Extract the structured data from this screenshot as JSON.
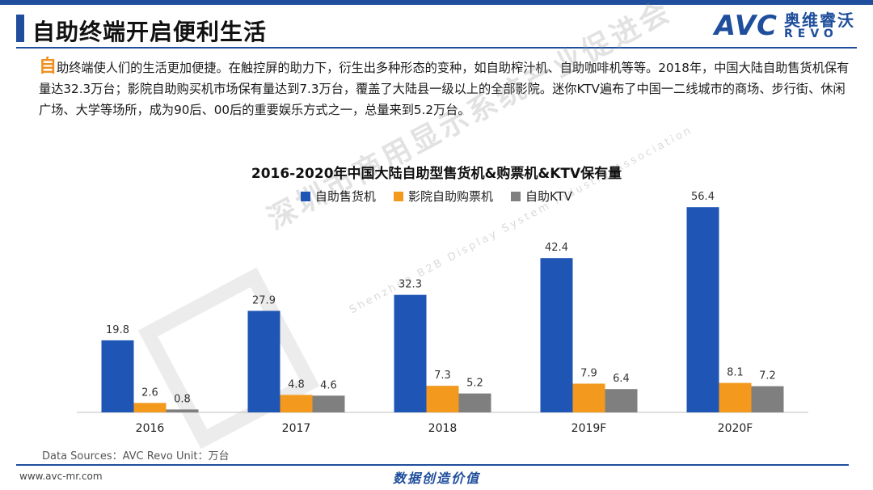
{
  "header": {
    "title": "自助终端开启便利生活",
    "logo_text": "AVC",
    "logo_cn": "奥维睿沃",
    "logo_revo": "REVO"
  },
  "intro": {
    "dropcap": "自",
    "text": "助终端使人们的生活更加便捷。在触控屏的助力下，衍生出多种形态的变种，如自助榨汁机、自助咖啡机等等。2018年，中国大陆自助售货机保有量达32.3万台；影院自助购买机市场保有量达到7.3万台，覆盖了大陆县一级以上的全部影院。迷你KTV遍布了中国一二线城市的商场、步行街、休闲广场、大学等场所，成为90后、00后的重要娱乐方式之一，总量来到5.2万台。"
  },
  "chart_data": {
    "type": "bar",
    "title": "2016-2020年中国大陆自助型售货机&购票机&KTV保有量",
    "categories": [
      "2016",
      "2017",
      "2018",
      "2019F",
      "2020F"
    ],
    "series": [
      {
        "name": "自助售货机",
        "values": [
          19.8,
          27.9,
          32.3,
          42.4,
          56.4
        ],
        "color": "#1f55b4"
      },
      {
        "name": "影院自助购票机",
        "values": [
          2.6,
          4.8,
          7.3,
          7.9,
          8.1
        ],
        "color": "#f39a1e"
      },
      {
        "name": "自助KTV",
        "values": [
          0.8,
          4.6,
          5.2,
          6.4,
          7.2
        ],
        "color": "#7f7f7f"
      }
    ],
    "ylim": [
      0,
      60
    ],
    "grid": false,
    "legend_position": "top-center"
  },
  "watermark": {
    "cn": "深圳市商用显示系统产业促进会",
    "en": "Shenzhen B2B Display System Industry Association"
  },
  "footer": {
    "source": "Data Sources：AVC Revo    Unit：万台",
    "website": "www.avc-mr.com",
    "slogan": "数据创造价值"
  }
}
